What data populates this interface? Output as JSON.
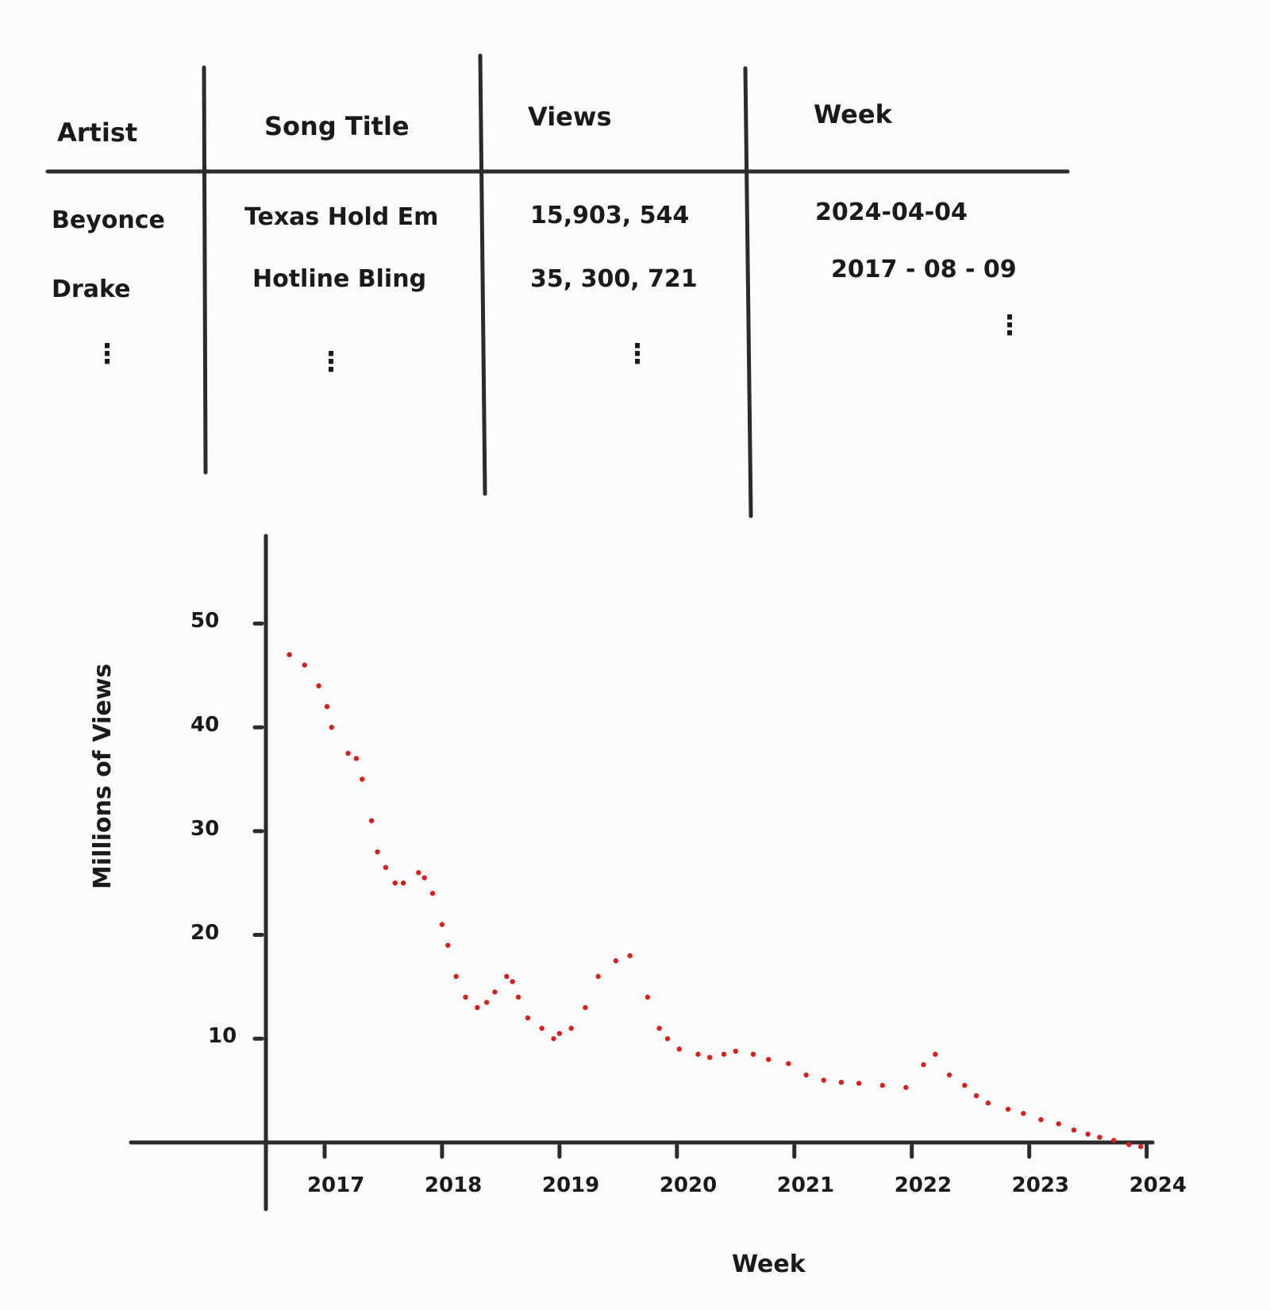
{
  "table": {
    "headers": [
      "Artist",
      "Song Title",
      "Views",
      "Week"
    ],
    "rows": [
      [
        "Beyonce",
        "Texas Hold Em",
        "15,903, 544",
        "2024-04-04"
      ],
      [
        "Drake",
        "Hotline Bling",
        "35, 300, 721",
        "2017 - 08 - 09"
      ]
    ],
    "continuation": "⋮"
  },
  "chart_data": {
    "type": "scatter",
    "xlabel": "Week",
    "ylabel": "Millions of Views",
    "x_ticks": [
      "2017",
      "2018",
      "2019",
      "2020",
      "2021",
      "2022",
      "2023",
      "2024"
    ],
    "y_ticks": [
      10,
      20,
      30,
      40,
      50
    ],
    "xlim": [
      2016.5,
      2024.05
    ],
    "ylim": [
      0,
      55
    ],
    "series": [
      {
        "color": "#d62020",
        "x": [
          2016.7,
          2016.83,
          2016.95,
          2017.02,
          2017.06,
          2017.2,
          2017.27,
          2017.32,
          2017.4,
          2017.45,
          2017.52,
          2017.6,
          2017.67,
          2017.8,
          2017.85,
          2017.92,
          2018.0,
          2018.05,
          2018.12,
          2018.2,
          2018.3,
          2018.38,
          2018.45,
          2018.55,
          2018.6,
          2018.65,
          2018.73,
          2018.85,
          2018.95,
          2019.0,
          2019.1,
          2019.22,
          2019.33,
          2019.48,
          2019.6,
          2019.75,
          2019.85,
          2019.92,
          2020.02,
          2020.18,
          2020.28,
          2020.4,
          2020.5,
          2020.65,
          2020.78,
          2020.95,
          2021.1,
          2021.25,
          2021.4,
          2021.55,
          2021.75,
          2021.95,
          2022.1,
          2022.2,
          2022.32,
          2022.45,
          2022.55,
          2022.65,
          2022.82,
          2022.95,
          2023.1,
          2023.25,
          2023.38,
          2023.5,
          2023.6,
          2023.72,
          2023.85,
          2023.95
        ],
        "y": [
          47,
          46,
          44,
          42,
          40,
          37.5,
          37,
          35,
          31,
          28,
          26.5,
          25,
          25,
          26,
          25.5,
          24,
          21,
          19,
          16,
          14,
          13,
          13.5,
          14.5,
          16,
          15.5,
          14,
          12,
          11,
          10,
          10.5,
          11,
          13,
          16,
          17.5,
          18,
          14,
          11,
          10,
          9,
          8.5,
          8.2,
          8.5,
          8.8,
          8.5,
          8,
          7.6,
          6.5,
          6,
          5.8,
          5.7,
          5.5,
          5.3,
          7.5,
          8.5,
          6.5,
          5.5,
          4.5,
          3.8,
          3.2,
          2.8,
          2.2,
          1.8,
          1.2,
          0.8,
          0.5,
          0.2,
          -0.2,
          -0.4
        ]
      }
    ]
  }
}
